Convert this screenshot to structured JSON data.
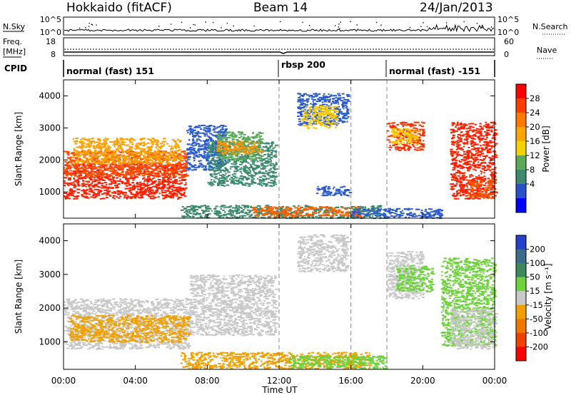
{
  "header": {
    "station": "Hokkaido (fitACF)",
    "beam": "Beam 14",
    "date": "24/Jan/2013"
  },
  "top_panels": {
    "nsky_label": "N.Sky",
    "nsky_ticks": [
      "10^5",
      "10^0"
    ],
    "nsky_right_ticks": [
      "10^5",
      "10^0"
    ],
    "nsearch_label": "N.Search",
    "freq_label": "Freq.",
    "freq_unit": "[MHz]",
    "freq_ticks": [
      "18",
      "8"
    ],
    "nave_ticks": [
      "60",
      "0"
    ],
    "nave_label": "Nave",
    "cpid_label": "CPID",
    "modes": [
      "normal (fast) 151",
      "rbsp 200",
      "normal (fast) -151"
    ]
  },
  "chart_data": [
    {
      "type": "heatmap",
      "quantity": "Power",
      "ylabel": "Slant Range [km]",
      "yticks": [
        1000,
        2000,
        3000,
        4000
      ],
      "ylim": [
        180,
        4500
      ],
      "xlim": [
        0,
        24
      ],
      "colorbar_label": "Power [dB]",
      "colorbar_ticks": [
        "28",
        "24",
        "20",
        "16",
        "12",
        "8",
        "4"
      ],
      "colorbar_colors": [
        "#ff0000",
        "#ff3c00",
        "#ff7800",
        "#ffa500",
        "#f5d200",
        "#5aaa5a",
        "#3c8a6e",
        "#2850c8",
        "#0000ff"
      ],
      "dashed_times": [
        12,
        16,
        18
      ]
    },
    {
      "type": "heatmap",
      "quantity": "Velocity",
      "ylabel": "Slant Range [km]",
      "yticks": [
        1000,
        2000,
        3000,
        4000
      ],
      "ylim": [
        180,
        4500
      ],
      "xlim": [
        0,
        24
      ],
      "colorbar_label": "Velocity [m s⁻¹]",
      "colorbar_ticks": [
        "200",
        "100",
        "50",
        "15",
        "-15",
        "-50",
        "-100",
        "-200"
      ],
      "colorbar_colors": [
        "#2840c8",
        "#3c6c8c",
        "#3c8a5a",
        "#6ed23c",
        "#c8c8c8",
        "#f0a000",
        "#f07800",
        "#f04000",
        "#ff0000"
      ],
      "dashed_times": [
        12,
        16,
        18
      ]
    }
  ],
  "time_axis": {
    "ticks": [
      "00:00",
      "04:00",
      "08:00",
      "12:00",
      "16:00",
      "20:00",
      "00:00"
    ],
    "label": "Time UT"
  },
  "power_regions": [
    {
      "t0": 0.0,
      "t1": 6.8,
      "r0": 800,
      "r1": 1900,
      "c": "#ff1e00"
    },
    {
      "t0": 0.0,
      "t1": 6.8,
      "r0": 1500,
      "r1": 2300,
      "c": "#ff5000"
    },
    {
      "t0": 0.5,
      "t1": 6.5,
      "r0": 1900,
      "r1": 2700,
      "c": "#ffa000"
    },
    {
      "t0": 6.8,
      "t1": 9.0,
      "r0": 1700,
      "r1": 3100,
      "c": "#2a5ad0"
    },
    {
      "t0": 8.0,
      "t1": 11.8,
      "r0": 1200,
      "r1": 2600,
      "c": "#3c8a6e"
    },
    {
      "t0": 8.5,
      "t1": 11.0,
      "r0": 2000,
      "r1": 2900,
      "c": "#5aaa5a"
    },
    {
      "t0": 8.5,
      "t1": 11.0,
      "r0": 2200,
      "r1": 2600,
      "c": "#ff9000"
    },
    {
      "t0": 13.0,
      "t1": 15.8,
      "r0": 3100,
      "r1": 4100,
      "c": "#2a5ad0"
    },
    {
      "t0": 13.2,
      "t1": 15.2,
      "r0": 3000,
      "r1": 3700,
      "c": "#f5c800"
    },
    {
      "t0": 14.0,
      "t1": 16.0,
      "r0": 900,
      "r1": 1200,
      "c": "#2a5ad0"
    },
    {
      "t0": 6.5,
      "t1": 17.8,
      "r0": 200,
      "r1": 600,
      "c": "#3c8a6e"
    },
    {
      "t0": 10.5,
      "t1": 16.5,
      "r0": 250,
      "r1": 550,
      "c": "#ff6000"
    },
    {
      "t0": 16.0,
      "t1": 21.0,
      "r0": 200,
      "r1": 500,
      "c": "#2a5ad0"
    },
    {
      "t0": 18.0,
      "t1": 20.0,
      "r0": 2300,
      "r1": 3200,
      "c": "#ff3000"
    },
    {
      "t0": 18.2,
      "t1": 19.8,
      "r0": 2500,
      "r1": 3000,
      "c": "#f5c800"
    },
    {
      "t0": 21.5,
      "t1": 24.0,
      "r0": 800,
      "r1": 3200,
      "c": "#ff2000"
    },
    {
      "t0": 22.5,
      "t1": 24.0,
      "r0": 800,
      "r1": 1400,
      "c": "#ff5000"
    }
  ],
  "velocity_regions": [
    {
      "t0": 0.0,
      "t1": 7.0,
      "r0": 800,
      "r1": 2300,
      "c": "#c8c8c8"
    },
    {
      "t0": 0.3,
      "t1": 7.0,
      "r0": 1000,
      "r1": 1800,
      "c": "#f0a000"
    },
    {
      "t0": 7.0,
      "t1": 11.8,
      "r0": 1200,
      "r1": 3000,
      "c": "#c8c8c8"
    },
    {
      "t0": 13.0,
      "t1": 15.8,
      "r0": 3100,
      "r1": 4200,
      "c": "#c8c8c8"
    },
    {
      "t0": 6.5,
      "t1": 17.0,
      "r0": 220,
      "r1": 700,
      "c": "#f0a000"
    },
    {
      "t0": 12.5,
      "t1": 18.0,
      "r0": 220,
      "r1": 600,
      "c": "#6ed23c"
    },
    {
      "t0": 18.0,
      "t1": 20.0,
      "r0": 2300,
      "r1": 3700,
      "c": "#c8c8c8"
    },
    {
      "t0": 18.5,
      "t1": 20.5,
      "r0": 2500,
      "r1": 3300,
      "c": "#6ed23c"
    },
    {
      "t0": 21.0,
      "t1": 24.0,
      "r0": 900,
      "r1": 3500,
      "c": "#6ed23c"
    },
    {
      "t0": 21.5,
      "t1": 24.0,
      "r0": 800,
      "r1": 2000,
      "c": "#c8c8c8"
    }
  ]
}
